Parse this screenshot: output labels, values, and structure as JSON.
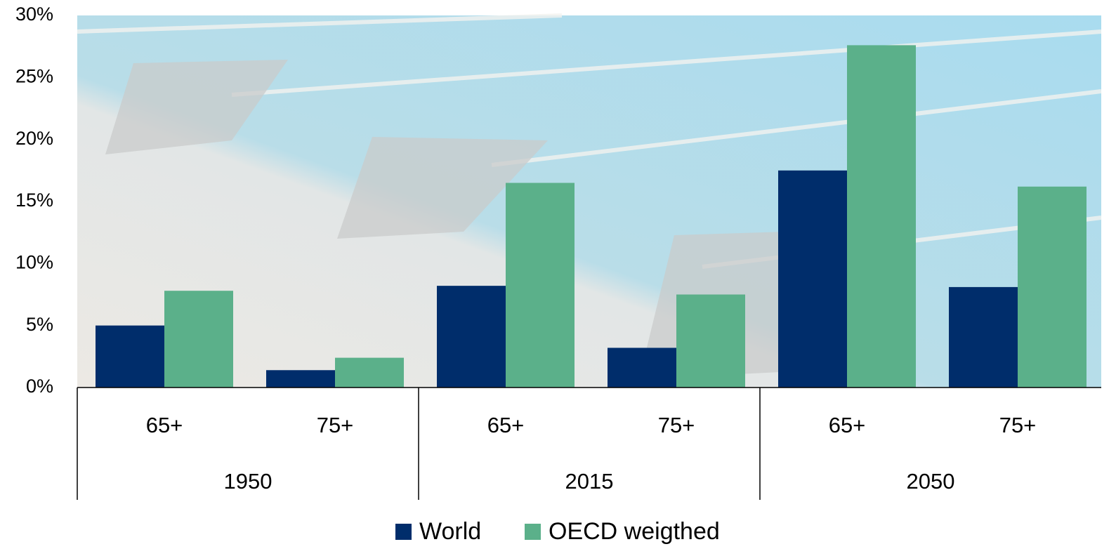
{
  "chart_data": {
    "type": "bar",
    "categories": [
      "65+",
      "75+",
      "65+",
      "75+",
      "65+",
      "75+"
    ],
    "category_groups": [
      "1950",
      "2015",
      "2050"
    ],
    "series": [
      {
        "name": "World",
        "color": "#002d6b",
        "values": [
          5.0,
          1.4,
          8.2,
          3.2,
          17.5,
          8.1
        ]
      },
      {
        "name": "OECD weigthed",
        "color": "#5bb08a",
        "values": [
          7.8,
          2.4,
          16.5,
          7.5,
          27.6,
          16.2
        ]
      }
    ],
    "ylim": [
      0,
      30
    ],
    "yticks": [
      {
        "value": 0,
        "label": "0%"
      },
      {
        "value": 5,
        "label": "5%"
      },
      {
        "value": 10,
        "label": "10%"
      },
      {
        "value": 15,
        "label": "15%"
      },
      {
        "value": 20,
        "label": "20%"
      },
      {
        "value": 25,
        "label": "25%"
      },
      {
        "value": 30,
        "label": "30%"
      }
    ],
    "legend": "bottom"
  }
}
